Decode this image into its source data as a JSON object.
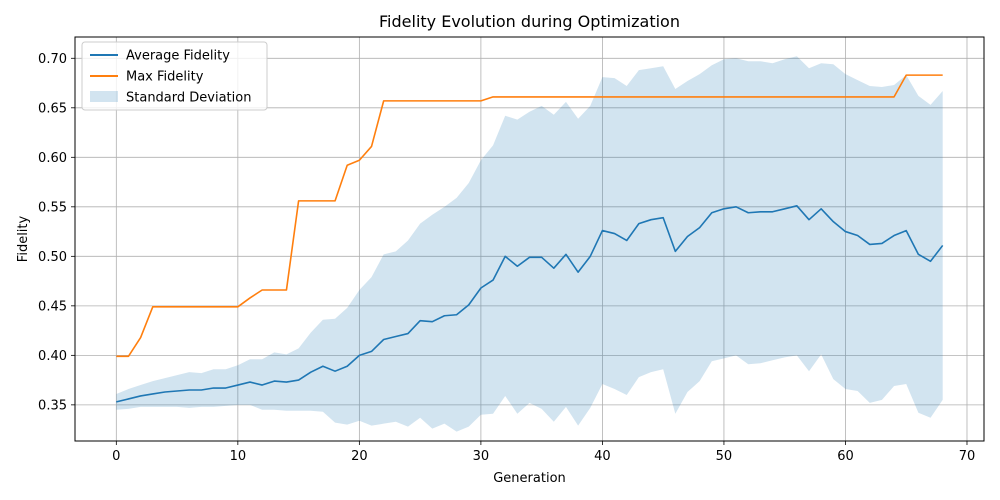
{
  "chart_data": {
    "type": "line",
    "title": "Fidelity Evolution during Optimization",
    "xlabel": "Generation",
    "ylabel": "Fidelity",
    "xlim": [
      -3.4,
      71.4
    ],
    "ylim": [
      0.3135,
      0.7215
    ],
    "xticks": [
      0,
      10,
      20,
      30,
      40,
      50,
      60,
      70
    ],
    "xtick_labels": [
      "0",
      "10",
      "20",
      "30",
      "40",
      "50",
      "60",
      "70"
    ],
    "yticks": [
      0.35,
      0.4,
      0.45,
      0.5,
      0.55,
      0.6,
      0.65,
      0.7
    ],
    "ytick_labels": [
      "0.35",
      "0.40",
      "0.45",
      "0.50",
      "0.55",
      "0.60",
      "0.65",
      "0.70"
    ],
    "grid": true,
    "legend_position": "upper-left",
    "x": [
      0,
      1,
      2,
      3,
      4,
      5,
      6,
      7,
      8,
      9,
      10,
      11,
      12,
      13,
      14,
      15,
      16,
      17,
      18,
      19,
      20,
      21,
      22,
      23,
      24,
      25,
      26,
      27,
      28,
      29,
      30,
      31,
      32,
      33,
      34,
      35,
      36,
      37,
      38,
      39,
      40,
      41,
      42,
      43,
      44,
      45,
      46,
      47,
      48,
      49,
      50,
      51,
      52,
      53,
      54,
      55,
      56,
      57,
      58,
      59,
      60,
      61,
      62,
      63,
      64,
      65,
      66,
      67,
      68
    ],
    "series": [
      {
        "name": "Average Fidelity",
        "color": "#1f77b4",
        "values": [
          0.353,
          0.356,
          0.359,
          0.361,
          0.363,
          0.364,
          0.365,
          0.365,
          0.367,
          0.367,
          0.37,
          0.373,
          0.37,
          0.374,
          0.373,
          0.375,
          0.383,
          0.389,
          0.384,
          0.389,
          0.4,
          0.404,
          0.416,
          0.419,
          0.422,
          0.435,
          0.434,
          0.44,
          0.441,
          0.451,
          0.468,
          0.476,
          0.5,
          0.49,
          0.499,
          0.499,
          0.488,
          0.502,
          0.484,
          0.5,
          0.526,
          0.523,
          0.516,
          0.533,
          0.537,
          0.539,
          0.505,
          0.52,
          0.529,
          0.544,
          0.548,
          0.55,
          0.544,
          0.545,
          0.545,
          0.548,
          0.551,
          0.537,
          0.548,
          0.535,
          0.525,
          0.521,
          0.512,
          0.513,
          0.521,
          0.526,
          0.502,
          0.495,
          0.511
        ]
      },
      {
        "name": "Max Fidelity",
        "color": "#ff7f0e",
        "values": [
          0.399,
          0.399,
          0.418,
          0.449,
          0.449,
          0.449,
          0.449,
          0.449,
          0.449,
          0.449,
          0.449,
          0.458,
          0.466,
          0.466,
          0.466,
          0.556,
          0.556,
          0.556,
          0.556,
          0.592,
          0.597,
          0.611,
          0.657,
          0.657,
          0.657,
          0.657,
          0.657,
          0.657,
          0.657,
          0.657,
          0.657,
          0.661,
          0.661,
          0.661,
          0.661,
          0.661,
          0.661,
          0.661,
          0.661,
          0.661,
          0.661,
          0.661,
          0.661,
          0.661,
          0.661,
          0.661,
          0.661,
          0.661,
          0.661,
          0.661,
          0.661,
          0.661,
          0.661,
          0.661,
          0.661,
          0.661,
          0.661,
          0.661,
          0.661,
          0.661,
          0.661,
          0.661,
          0.661,
          0.661,
          0.661,
          0.683,
          0.683,
          0.683,
          0.683
        ]
      }
    ],
    "band": {
      "name": "Standard Deviation",
      "color": "#1f77b4",
      "opacity": 0.2,
      "upper": [
        0.361,
        0.366,
        0.37,
        0.374,
        0.377,
        0.38,
        0.383,
        0.382,
        0.386,
        0.386,
        0.39,
        0.396,
        0.396,
        0.403,
        0.401,
        0.407,
        0.423,
        0.436,
        0.437,
        0.448,
        0.466,
        0.479,
        0.502,
        0.505,
        0.516,
        0.533,
        0.542,
        0.55,
        0.559,
        0.574,
        0.597,
        0.612,
        0.642,
        0.638,
        0.646,
        0.652,
        0.643,
        0.656,
        0.639,
        0.652,
        0.681,
        0.68,
        0.672,
        0.688,
        0.69,
        0.692,
        0.669,
        0.677,
        0.684,
        0.693,
        0.699,
        0.7,
        0.697,
        0.697,
        0.695,
        0.699,
        0.702,
        0.69,
        0.695,
        0.694,
        0.684,
        0.678,
        0.672,
        0.671,
        0.673,
        0.683,
        0.662,
        0.653,
        0.667
      ],
      "lower": [
        0.345,
        0.346,
        0.348,
        0.348,
        0.348,
        0.348,
        0.347,
        0.348,
        0.348,
        0.349,
        0.35,
        0.35,
        0.345,
        0.345,
        0.344,
        0.344,
        0.344,
        0.343,
        0.332,
        0.33,
        0.334,
        0.329,
        0.331,
        0.333,
        0.328,
        0.337,
        0.326,
        0.331,
        0.323,
        0.328,
        0.34,
        0.341,
        0.359,
        0.341,
        0.352,
        0.346,
        0.333,
        0.348,
        0.329,
        0.347,
        0.371,
        0.366,
        0.36,
        0.378,
        0.383,
        0.386,
        0.341,
        0.363,
        0.374,
        0.394,
        0.397,
        0.4,
        0.391,
        0.392,
        0.395,
        0.398,
        0.4,
        0.384,
        0.401,
        0.376,
        0.366,
        0.364,
        0.352,
        0.355,
        0.369,
        0.371,
        0.342,
        0.337,
        0.355
      ]
    }
  }
}
